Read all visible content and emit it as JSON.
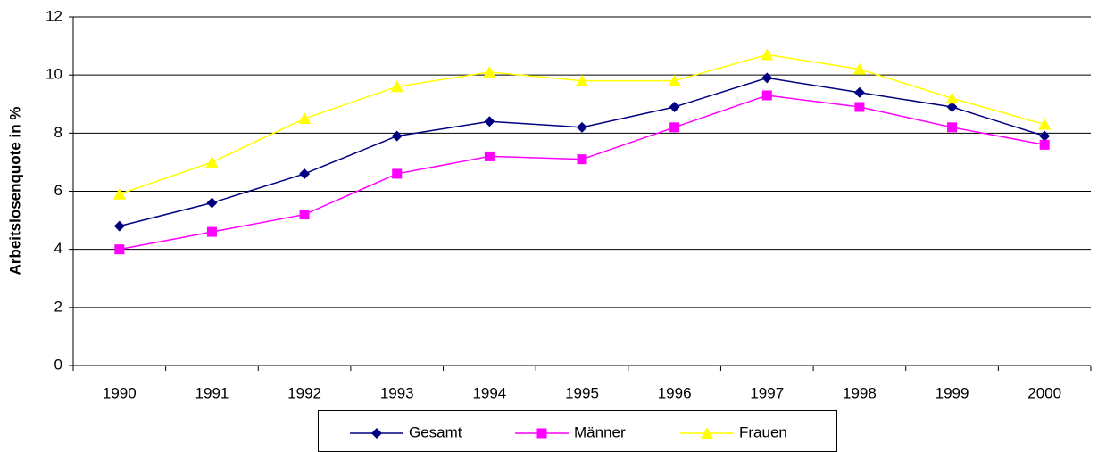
{
  "chart_data": {
    "type": "line",
    "y_label": "Arbeitslosenquote in %",
    "categories": [
      "1990",
      "1991",
      "1992",
      "1993",
      "1994",
      "1995",
      "1996",
      "1997",
      "1998",
      "1999",
      "2000"
    ],
    "series": [
      {
        "name": "Gesamt",
        "color": "#000080",
        "marker": "diamond",
        "values": [
          4.8,
          5.6,
          6.6,
          7.9,
          8.4,
          8.2,
          8.9,
          9.9,
          9.4,
          8.9,
          7.9
        ]
      },
      {
        "name": "Männer",
        "color": "#ff00ff",
        "marker": "square",
        "values": [
          4.0,
          4.6,
          5.2,
          6.6,
          7.2,
          7.1,
          8.2,
          9.3,
          8.9,
          8.2,
          7.6
        ]
      },
      {
        "name": "Frauen",
        "color": "#ffff00",
        "marker": "triangle",
        "values": [
          5.9,
          7.0,
          8.5,
          9.6,
          10.1,
          9.8,
          9.8,
          10.7,
          10.2,
          9.2,
          8.3
        ]
      }
    ],
    "ylim": [
      0,
      12
    ],
    "yticks": [
      0,
      2,
      4,
      6,
      8,
      10,
      12
    ],
    "grid": true,
    "legend": "bottom"
  }
}
